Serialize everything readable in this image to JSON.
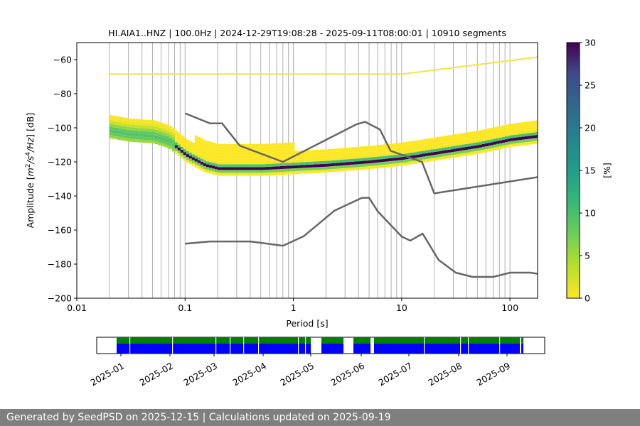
{
  "chart_data": {
    "type": "heatmap",
    "title": "HI.AIA1..HNZ | 100.0Hz | 2024-12-29T19:08:28 - 2025-09-11T08:00:01 | 10910 segments",
    "xlabel": "Period [s]",
    "ylabel_parts": [
      "Amplitude [",
      "m",
      "2",
      "/s",
      "4",
      "/Hz",
      "] [dB]"
    ],
    "xscale": "log",
    "xlim": [
      0.01,
      180
    ],
    "ylim": [
      -200,
      -50
    ],
    "x_ticks": [
      {
        "value": 0.01,
        "label": "0.01"
      },
      {
        "value": 0.1,
        "label": "0.1"
      },
      {
        "value": 1,
        "label": "1"
      },
      {
        "value": 10,
        "label": "10"
      },
      {
        "value": 100,
        "label": "100"
      }
    ],
    "y_ticks": [
      -60,
      -80,
      -100,
      -120,
      -140,
      -160,
      -180,
      -200
    ],
    "grid": "vertical lines at minor log ticks",
    "colorbar": {
      "label": "[%]",
      "range": [
        0,
        30
      ],
      "ticks": [
        0,
        5,
        10,
        15,
        20,
        25,
        30
      ],
      "colormap": "viridis_r"
    },
    "mode_curve": {
      "period": [
        0.02,
        0.03,
        0.05,
        0.07,
        0.1,
        0.15,
        0.2,
        0.3,
        0.5,
        1,
        2,
        5,
        10,
        20,
        50,
        100,
        180
      ],
      "db": [
        -101,
        -103,
        -104,
        -107,
        -115,
        -121,
        -123,
        -123,
        -123,
        -122,
        -121,
        -119,
        -117,
        -114,
        -110,
        -106,
        -104
      ]
    },
    "noise_models": [
      {
        "name_shown": "",
        "period": [
          0.1,
          0.17,
          0.22,
          0.32,
          0.8,
          3.8,
          4.6,
          6.3,
          7.9,
          15.4,
          20,
          354
        ],
        "db": [
          -91.5,
          -97.4,
          -97.4,
          -110.5,
          -120,
          -98,
          -96.5,
          -101,
          -113.5,
          -120,
          -138.5,
          -126
        ]
      },
      {
        "name_shown": "",
        "period": [
          0.1,
          0.17,
          0.4,
          0.8,
          1.24,
          2.4,
          4.3,
          5,
          6,
          10,
          12,
          15.6,
          21.9,
          31.6,
          45,
          70,
          101,
          154,
          180
        ],
        "db": [
          -168,
          -166.7,
          -166.7,
          -169.2,
          -163.7,
          -148.6,
          -141.1,
          -141.1,
          -149,
          -163.8,
          -166.2,
          -162.1,
          -177.5,
          -185,
          -187.5,
          -187.5,
          -185,
          -185,
          -185.7
        ]
      }
    ]
  },
  "availability": {
    "colors": {
      "gaps": "#008000",
      "data": "#0000ff"
    },
    "date_ticks": [
      "2025-01",
      "2025-02",
      "2025-03",
      "2025-04",
      "2025-05",
      "2025-06",
      "2025-07",
      "2025-08",
      "2025-09"
    ]
  },
  "footer": "Generated by SeedPSD on 2025-12-15 | Calculations updated on 2025-09-19"
}
